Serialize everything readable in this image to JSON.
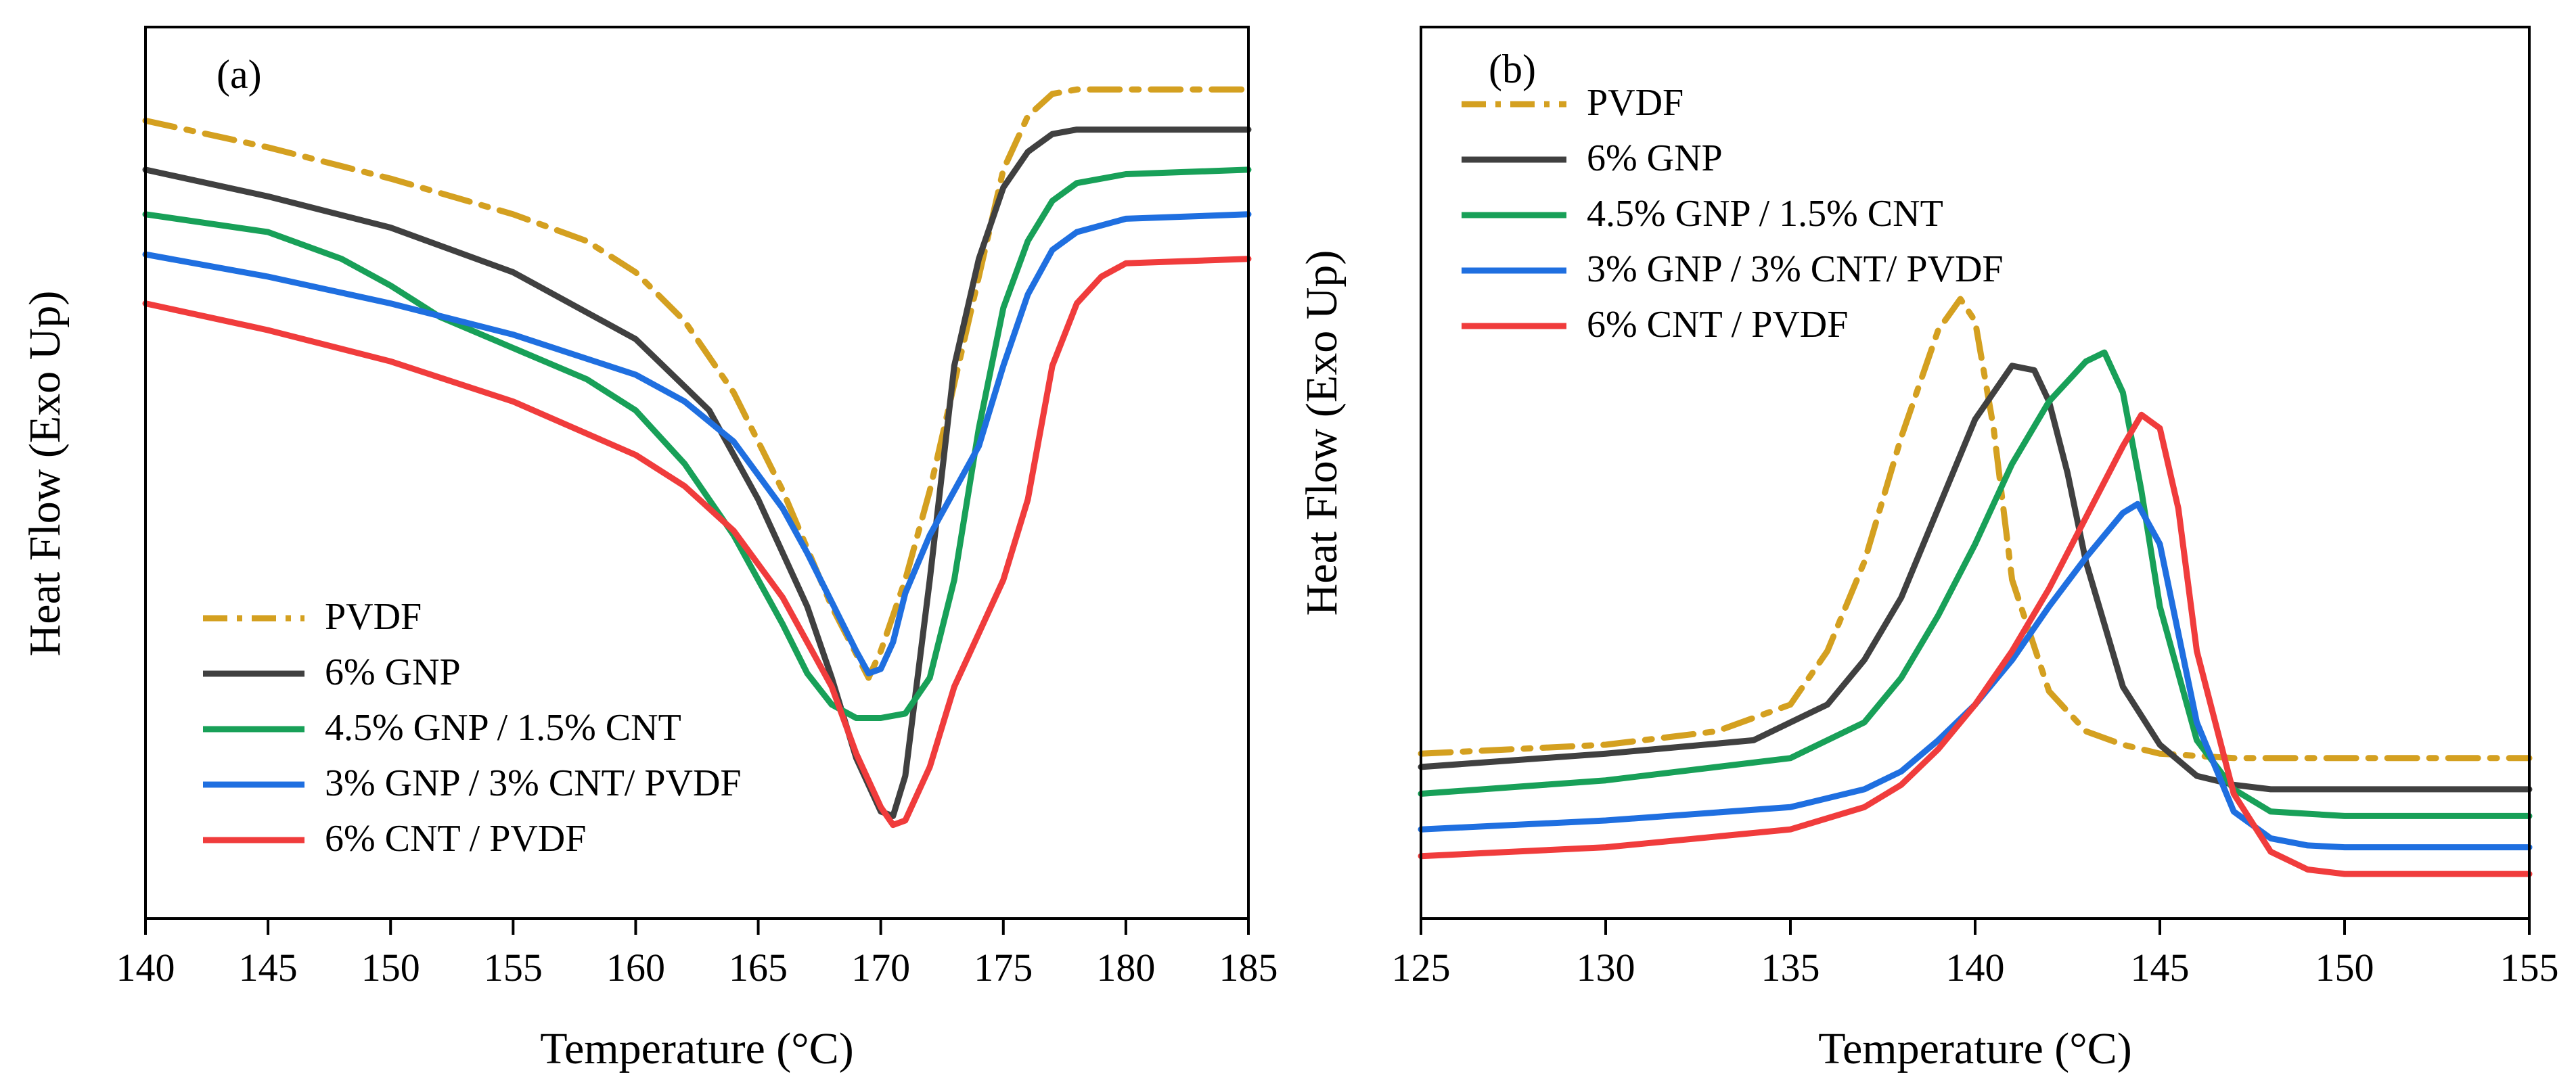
{
  "chart_data": [
    {
      "type": "line",
      "panel_label": "(a)",
      "xlabel": "Temperature (°C)",
      "ylabel": "Heat Flow (Exo Up)",
      "xlim": [
        140,
        185
      ],
      "ylim": [
        0,
        100
      ],
      "xticks": [
        140,
        145,
        150,
        155,
        160,
        165,
        170,
        175,
        180,
        185
      ],
      "xtick_labels": [
        "140",
        "145",
        "150",
        "155",
        "160",
        "165",
        "170",
        "175",
        "180",
        "185"
      ],
      "y_tick_labels_shown": false,
      "legend_position": "lower-left",
      "series": [
        {
          "name": "PVDF",
          "color": "#d4a020",
          "dash": "dashdot",
          "x": [
            140,
            145,
            150,
            155,
            158,
            160,
            162,
            164,
            166,
            168,
            169.5,
            170,
            171,
            172,
            173,
            174,
            175,
            176,
            177,
            178,
            180,
            185
          ],
          "y": [
            89.5,
            86.5,
            83.0,
            79.0,
            76.0,
            72.5,
            67.0,
            59.0,
            48.0,
            35.0,
            27.0,
            30.0,
            38.0,
            48.0,
            60.0,
            72.0,
            84.0,
            90.0,
            92.5,
            93.0,
            93.0,
            93.0
          ]
        },
        {
          "name": "6% GNP",
          "color": "#404040",
          "dash": "solid",
          "x": [
            140,
            145,
            150,
            155,
            160,
            163,
            165,
            167,
            168,
            169,
            170,
            170.5,
            171,
            172,
            173,
            174,
            175,
            176,
            177,
            178,
            180,
            185
          ],
          "y": [
            84.0,
            81.0,
            77.5,
            72.5,
            65.0,
            57.0,
            47.0,
            35.0,
            27.0,
            18.0,
            12.0,
            11.5,
            16.0,
            38.0,
            62.0,
            74.0,
            82.0,
            86.0,
            88.0,
            88.5,
            88.5,
            88.5
          ]
        },
        {
          "name": "4.5% GNP / 1.5% CNT",
          "color": "#18a058",
          "dash": "solid",
          "x": [
            140,
            145,
            148,
            150,
            152,
            155,
            158,
            160,
            162,
            164,
            166,
            167,
            168,
            169,
            170,
            171,
            172,
            173,
            174,
            175,
            176,
            177,
            178,
            180,
            185
          ],
          "y": [
            79.0,
            77.0,
            74.0,
            71.0,
            67.5,
            64.0,
            60.5,
            57.0,
            51.0,
            43.0,
            33.0,
            27.5,
            24.0,
            22.5,
            22.5,
            23.0,
            27.0,
            38.0,
            55.0,
            68.5,
            76.0,
            80.5,
            82.5,
            83.5,
            84.0
          ]
        },
        {
          "name": "3% GNP / 3% CNT/ PVDF",
          "color": "#1f6fe0",
          "dash": "solid",
          "x": [
            140,
            145,
            150,
            155,
            160,
            162,
            164,
            166,
            167,
            168,
            169,
            169.5,
            170,
            170.5,
            171,
            172,
            173,
            174,
            175,
            176,
            177,
            178,
            180,
            185
          ],
          "y": [
            74.5,
            72.0,
            69.0,
            65.5,
            61.0,
            58.0,
            53.5,
            46.0,
            41.0,
            35.5,
            30.0,
            27.5,
            28.0,
            31.0,
            36.5,
            43.0,
            48.0,
            53.0,
            62.0,
            70.0,
            75.0,
            77.0,
            78.5,
            79.0
          ]
        },
        {
          "name": "6% CNT / PVDF",
          "color": "#f03c3c",
          "dash": "solid",
          "x": [
            140,
            145,
            150,
            155,
            160,
            162,
            164,
            166,
            168,
            169,
            170,
            170.5,
            171,
            172,
            173,
            174,
            175,
            176,
            177,
            178,
            179,
            180,
            185
          ],
          "y": [
            69.0,
            66.0,
            62.5,
            58.0,
            52.0,
            48.5,
            43.5,
            36.0,
            26.0,
            18.5,
            12.5,
            10.5,
            11.0,
            17.0,
            26.0,
            32.0,
            38.0,
            47.0,
            62.0,
            69.0,
            72.0,
            73.5,
            74.0
          ]
        }
      ],
      "legend": [
        "PVDF",
        "6% GNP",
        "4.5% GNP / 1.5% CNT",
        "3% GNP / 3% CNT/ PVDF",
        "6% CNT / PVDF"
      ]
    },
    {
      "type": "line",
      "panel_label": "(b)",
      "xlabel": "Temperature (°C)",
      "ylabel": "Heat Flow (Exo Up)",
      "xlim": [
        125,
        155
      ],
      "ylim": [
        0,
        100
      ],
      "xticks": [
        125,
        130,
        135,
        140,
        145,
        150,
        155
      ],
      "xtick_labels": [
        "125",
        "130",
        "135",
        "140",
        "145",
        "150",
        "155"
      ],
      "y_tick_labels_shown": false,
      "legend_position": "top-left",
      "series": [
        {
          "name": "PVDF",
          "color": "#d4a020",
          "dash": "dashdot",
          "x": [
            125,
            130,
            133,
            135,
            136,
            137,
            138,
            139,
            139.6,
            140,
            140.5,
            141,
            142,
            143,
            144,
            145,
            147,
            150,
            155
          ],
          "y": [
            18.5,
            19.5,
            21.0,
            24.0,
            30.0,
            40.0,
            54.0,
            66.0,
            69.5,
            67.0,
            55.0,
            38.0,
            25.5,
            21.0,
            19.5,
            18.5,
            18.0,
            18.0,
            18.0
          ]
        },
        {
          "name": "6% GNP",
          "color": "#404040",
          "dash": "solid",
          "x": [
            125,
            130,
            134,
            136,
            137,
            138,
            139,
            140,
            141,
            141.6,
            142,
            142.5,
            143,
            144,
            145,
            146,
            147,
            148,
            150,
            155
          ],
          "y": [
            17.0,
            18.5,
            20.0,
            24.0,
            29.0,
            36.0,
            46.0,
            56.0,
            62.0,
            61.5,
            58.0,
            50.0,
            40.0,
            26.0,
            19.5,
            16.0,
            15.0,
            14.5,
            14.5,
            14.5
          ]
        },
        {
          "name": "4.5% GNP / 1.5% CNT",
          "color": "#18a058",
          "dash": "solid",
          "x": [
            125,
            130,
            135,
            137,
            138,
            139,
            140,
            141,
            142,
            143,
            143.5,
            144,
            144.5,
            145,
            146,
            147,
            148,
            150,
            155
          ],
          "y": [
            14.0,
            15.5,
            18.0,
            22.0,
            27.0,
            34.0,
            42.0,
            51.0,
            58.0,
            62.5,
            63.5,
            59.0,
            48.0,
            35.0,
            20.0,
            14.5,
            12.0,
            11.5,
            11.5
          ]
        },
        {
          "name": "3% GNP / 3% CNT/ PVDF",
          "color": "#1f6fe0",
          "dash": "solid",
          "x": [
            125,
            130,
            135,
            137,
            138,
            139,
            140,
            141,
            142,
            143,
            144,
            144.4,
            145,
            145.5,
            146,
            147,
            148,
            149,
            150,
            155
          ],
          "y": [
            10.0,
            11.0,
            12.5,
            14.5,
            16.5,
            20.0,
            24.0,
            29.0,
            35.0,
            40.5,
            45.5,
            46.5,
            42.0,
            32.0,
            22.0,
            12.0,
            9.0,
            8.2,
            8.0,
            8.0
          ]
        },
        {
          "name": "6% CNT / PVDF",
          "color": "#f03c3c",
          "dash": "solid",
          "x": [
            125,
            130,
            135,
            137,
            138,
            139,
            140,
            141,
            142,
            143,
            144,
            144.5,
            145,
            145.5,
            146,
            147,
            148,
            149,
            150,
            155
          ],
          "y": [
            7.0,
            8.0,
            10.0,
            12.5,
            15.0,
            19.0,
            24.0,
            30.0,
            37.0,
            45.0,
            53.0,
            56.5,
            55.0,
            46.0,
            30.0,
            14.0,
            7.5,
            5.5,
            5.0,
            5.0
          ]
        }
      ],
      "legend": [
        "PVDF",
        "6% GNP",
        "4.5% GNP / 1.5% CNT",
        "3% GNP / 3% CNT/ PVDF",
        "6% CNT / PVDF"
      ]
    }
  ]
}
